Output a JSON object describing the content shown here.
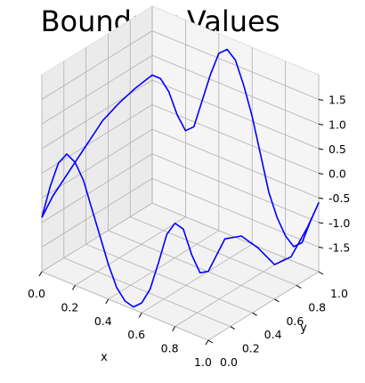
{
  "chart_data": {
    "type": "line3d",
    "title": "Boundary Values",
    "xlabel": "x",
    "ylabel": "y",
    "zlabel": "",
    "xlim": [
      0.0,
      1.0
    ],
    "ylim": [
      0.0,
      1.0
    ],
    "zlim": [
      -2.0,
      2.0
    ],
    "xticks": [
      "0.0",
      "0.2",
      "0.4",
      "0.6",
      "0.8",
      "1.0"
    ],
    "yticks": [
      "0.0",
      "0.2",
      "0.4",
      "0.6",
      "0.8",
      "1.0"
    ],
    "zticks": [
      "-1.5",
      "-1.0",
      "-0.5",
      "0.0",
      "0.5",
      "1.0",
      "1.5"
    ],
    "grid": true,
    "series": [
      {
        "color": "#0000ff",
        "x": [
          0,
          0.05,
          0.1,
          0.15,
          0.2,
          0.25,
          0.3,
          0.35,
          0.4,
          0.45,
          0.5,
          0.55,
          0.6,
          0.65,
          0.7,
          0.75,
          0.8,
          0.85,
          0.9,
          0.95,
          1.0,
          1.0,
          1.0,
          1.0,
          1.0,
          1.0,
          1.0,
          1.0,
          0.95,
          0.9,
          0.85,
          0.8,
          0.75,
          0.7,
          0.65,
          0.6,
          0.55,
          0.5,
          0.45,
          0.4,
          0.35,
          0.3,
          0.25,
          0.2,
          0.15,
          0.1,
          0.05,
          0.0,
          0.0,
          0.0,
          0.0,
          0.0,
          0.0,
          0.0,
          0.0
        ],
        "y": [
          0,
          0,
          0,
          0,
          0,
          0,
          0,
          0,
          0,
          0,
          0,
          0,
          0,
          0,
          0,
          0,
          0,
          0,
          0,
          0,
          0,
          0.15,
          0.3,
          0.45,
          0.6,
          0.75,
          0.9,
          1.0,
          1.0,
          1.0,
          1.0,
          1.0,
          1.0,
          1.0,
          1.0,
          1.0,
          1.0,
          1.0,
          1.0,
          1.0,
          1.0,
          1.0,
          1.0,
          1.0,
          1.0,
          1.0,
          1.0,
          1.0,
          0.85,
          0.7,
          0.55,
          0.4,
          0.25,
          0.1,
          0.0
        ],
        "z": [
          -0.9,
          -0.2,
          0.35,
          0.6,
          0.5,
          0.2,
          -0.3,
          -0.8,
          -1.3,
          -1.7,
          -1.9,
          -1.95,
          -1.8,
          -1.45,
          -0.85,
          -0.2,
          0.1,
          0.05,
          -0.4,
          -0.7,
          -0.6,
          -0.15,
          -0.3,
          -0.75,
          -1.3,
          -1.35,
          -0.95,
          -0.6,
          -1.05,
          -1.55,
          -1.7,
          -1.55,
          -1.25,
          -0.8,
          -0.1,
          0.6,
          1.15,
          1.6,
          1.75,
          1.6,
          1.1,
          0.5,
          -0.1,
          -0.25,
          0.0,
          0.4,
          0.6,
          0.6,
          0.55,
          0.45,
          0.3,
          0.0,
          -0.3,
          -0.6,
          -0.9
        ]
      }
    ]
  }
}
